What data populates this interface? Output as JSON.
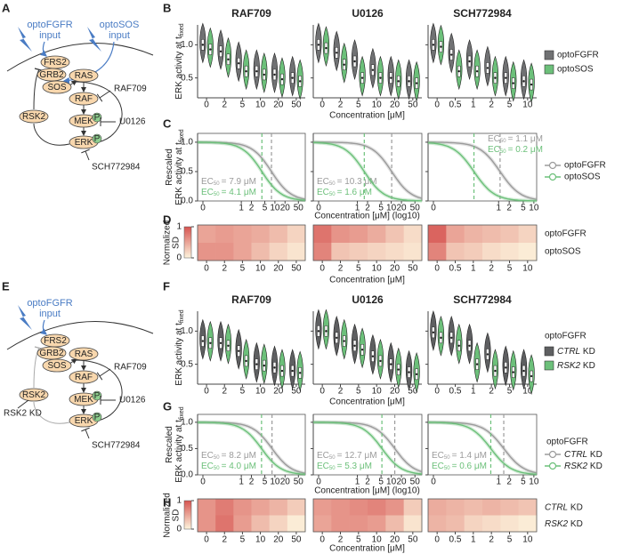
{
  "diagrams": [
    {
      "label": "A",
      "inputs": [
        [
          "optoFGFR",
          "input"
        ],
        [
          "optoSOS",
          "input"
        ]
      ],
      "nodes": [
        "FRS2",
        "GRB2",
        "SOS",
        "RAS",
        "RAF",
        "MEK",
        "ERK",
        "RSK2"
      ],
      "phospho": "P",
      "inhibitors": [
        "RAF709",
        "U0126",
        "SCH772984"
      ]
    },
    {
      "label": "E",
      "inputs": [
        [
          "optoFGFR",
          "input"
        ]
      ],
      "nodes": [
        "FRS2",
        "GRB2",
        "SOS",
        "RAS",
        "RAF",
        "MEK",
        "ERK",
        "RSK2"
      ],
      "phospho": "P",
      "inhibitors": [
        "RAF709",
        "U0126",
        "SCH772984"
      ],
      "knockdown": "RSK2 KD"
    }
  ],
  "chart_data": [
    {
      "label": "B",
      "type": "violin",
      "ylabel": "ERK activity at t",
      "ylabel_sub": "fixed",
      "xlabel": "Concentration [μM]",
      "ylim": [
        0.2,
        1.3
      ],
      "yticks": [
        {
          "value": 0.5,
          "label": "0.5"
        },
        {
          "value": 1,
          "label": "1.0"
        }
      ],
      "series": [
        {
          "name": "optoFGFR",
          "color": "#707173"
        },
        {
          "name": "optoSOS",
          "color": "#6cc07a"
        }
      ],
      "subplots": [
        {
          "title": "RAF709",
          "categories": [
            "0",
            "2",
            "5",
            "10",
            "20",
            "50"
          ],
          "values": [
            [
              1.0,
              0.9,
              0.72,
              0.6,
              0.55,
              0.5
            ],
            [
              0.93,
              0.78,
              0.6,
              0.55,
              0.48,
              0.45
            ]
          ]
        },
        {
          "title": "U0126",
          "categories": [
            "0",
            "2",
            "5",
            "10",
            "20",
            "50"
          ],
          "values": [
            [
              1.0,
              0.88,
              0.75,
              0.62,
              0.5,
              0.45
            ],
            [
              0.95,
              0.7,
              0.5,
              0.5,
              0.45,
              0.42
            ]
          ]
        },
        {
          "title": "SCH772984",
          "categories": [
            "0",
            "0.5",
            "1",
            "2",
            "5",
            "10"
          ],
          "values": [
            [
              1.0,
              0.85,
              0.75,
              0.65,
              0.5,
              0.45
            ],
            [
              0.97,
              0.6,
              0.6,
              0.5,
              0.42,
              0.4
            ]
          ]
        }
      ]
    },
    {
      "label": "C",
      "type": "dose_response",
      "ylabel": [
        "Rescaled",
        "ERK activity at t"
      ],
      "ylabel_sub": "fixed",
      "xlabel": "Concentration [μM] (log10)",
      "ylim": [
        0,
        1.15
      ],
      "yticks": [
        {
          "value": 0,
          "label": "0.0"
        },
        {
          "value": 0.5,
          "label": "0.5"
        },
        {
          "value": 1,
          "label": "1.0"
        }
      ],
      "ec50_prefix": "EC",
      "ec50_sub": "50",
      "series": [
        {
          "name": "optoFGFR",
          "color": "#9b9b9b"
        },
        {
          "name": "optoSOS",
          "color": "#6cc07a"
        }
      ],
      "subplots": [
        {
          "xlim": [
            0.05,
            80
          ],
          "xticks": [
            0,
            1,
            2,
            5,
            10,
            20,
            50
          ],
          "ec50": [
            {
              "value": 7.9,
              "label": "= 7.9 μM"
            },
            {
              "value": 4.1,
              "label": "= 4.1 μM"
            }
          ]
        },
        {
          "xlim": [
            0.05,
            80
          ],
          "xticks": [
            0,
            1,
            2,
            5,
            10,
            20,
            50
          ],
          "ec50": [
            {
              "value": 10.3,
              "label": "= 10.3 μM"
            },
            {
              "value": 1.6,
              "label": "= 1.6 μM"
            }
          ]
        },
        {
          "xlim": [
            0.01,
            12
          ],
          "xticks": [
            0,
            1,
            2,
            5,
            10
          ],
          "ec50": [
            {
              "value": 1.1,
              "label": "= 1.1 μM"
            },
            {
              "value": 0.2,
              "label": "= 0.2 μM"
            }
          ]
        }
      ]
    },
    {
      "label": "D",
      "type": "heatmap",
      "colorbar_label": [
        "Normalized",
        "SD"
      ],
      "colorbar_ticks": [
        0,
        1
      ],
      "colors": [
        "#fdf4dd",
        "#d65451"
      ],
      "rows": [
        "optoFGFR",
        "optoSOS"
      ],
      "xlabel": "Concentration [μM]",
      "subplots": [
        {
          "categories": [
            "0",
            "2",
            "5",
            "10",
            "20",
            "50"
          ],
          "values": [
            [
              0.5,
              0.55,
              0.5,
              0.45,
              0.35,
              0.2
            ],
            [
              0.6,
              0.6,
              0.5,
              0.35,
              0.2,
              0.1
            ]
          ]
        },
        {
          "categories": [
            "0",
            "2",
            "5",
            "10",
            "20",
            "50"
          ],
          "values": [
            [
              0.8,
              0.6,
              0.55,
              0.45,
              0.3,
              0.15
            ],
            [
              0.7,
              0.3,
              0.25,
              0.2,
              0.15,
              0.1
            ]
          ]
        },
        {
          "categories": [
            "0",
            "0.5",
            "1",
            "2",
            "5",
            "10"
          ],
          "values": [
            [
              0.9,
              0.5,
              0.4,
              0.35,
              0.3,
              0.2
            ],
            [
              0.7,
              0.3,
              0.25,
              0.15,
              0.1,
              0.05
            ]
          ]
        }
      ]
    },
    {
      "label": "F",
      "type": "violin",
      "ylabel": "ERK activity at t",
      "ylabel_sub": "fixed",
      "xlabel": "Concentration [μM]",
      "ylim": [
        0.2,
        1.3
      ],
      "yticks": [
        {
          "value": 0.5,
          "label": "0.5"
        },
        {
          "value": 1,
          "label": "1.0"
        }
      ],
      "legend_title": "optoFGFR",
      "series": [
        {
          "name": "CTRL KD",
          "color": "#5e5f61"
        },
        {
          "name": "RSK2 KD",
          "color": "#6cc07a"
        }
      ],
      "subplots": [
        {
          "title": "RAF709",
          "categories": [
            "0",
            "2",
            "5",
            "10",
            "20",
            "50"
          ],
          "values": [
            [
              0.85,
              0.82,
              0.7,
              0.5,
              0.45,
              0.4
            ],
            [
              0.82,
              0.78,
              0.55,
              0.48,
              0.4,
              0.37
            ]
          ]
        },
        {
          "title": "U0126",
          "categories": [
            "0",
            "2",
            "5",
            "10",
            "20",
            "50"
          ],
          "values": [
            [
              1.0,
              0.9,
              0.78,
              0.62,
              0.5,
              0.38
            ],
            [
              1.0,
              0.85,
              0.72,
              0.55,
              0.42,
              0.35
            ]
          ]
        },
        {
          "title": "SCH772984",
          "categories": [
            "0",
            "0.5",
            "1",
            "2",
            "5",
            "10"
          ],
          "values": [
            [
              0.98,
              0.9,
              0.78,
              0.65,
              0.45,
              0.4
            ],
            [
              0.9,
              0.78,
              0.5,
              0.4,
              0.38,
              0.32
            ]
          ]
        }
      ]
    },
    {
      "label": "G",
      "type": "dose_response",
      "ylabel": [
        "Rescaled",
        "ERK activity at t"
      ],
      "ylabel_sub": "fixed",
      "xlabel": "Concentration [μM] (log10)",
      "ylim": [
        0,
        1.15
      ],
      "yticks": [
        {
          "value": 0,
          "label": "0.0"
        },
        {
          "value": 0.5,
          "label": "0.5"
        },
        {
          "value": 1,
          "label": "1.0"
        }
      ],
      "ec50_prefix": "EC",
      "ec50_sub": "50",
      "legend_title": "optoFGFR",
      "series": [
        {
          "name": "CTRL KD",
          "color": "#9b9b9b"
        },
        {
          "name": "RSK2 KD",
          "color": "#6cc07a"
        }
      ],
      "subplots": [
        {
          "xlim": [
            0.05,
            80
          ],
          "xticks": [
            0,
            1,
            2,
            5,
            10,
            20,
            50
          ],
          "ec50": [
            {
              "value": 8.2,
              "label": "= 8.2 μM"
            },
            {
              "value": 4.0,
              "label": "= 4.0 μM"
            }
          ]
        },
        {
          "xlim": [
            0.05,
            80
          ],
          "xticks": [
            0,
            1,
            2,
            5,
            10,
            20,
            50
          ],
          "ec50": [
            {
              "value": 12.7,
              "label": "= 12.7 μM"
            },
            {
              "value": 5.3,
              "label": "= 5.3 μM"
            }
          ]
        },
        {
          "xlim": [
            0.01,
            12
          ],
          "xticks": [
            0,
            1,
            2,
            5,
            10
          ],
          "ec50": [
            {
              "value": 1.4,
              "label": "= 1.4 μM"
            },
            {
              "value": 0.6,
              "label": "= 0.6 μM"
            }
          ]
        }
      ]
    },
    {
      "label": "H",
      "type": "heatmap",
      "colorbar_label": [
        "Normalized",
        "SD"
      ],
      "colorbar_ticks": [
        0,
        1
      ],
      "colors": [
        "#fdf4dd",
        "#d65451"
      ],
      "rows": [
        "CTRL KD",
        "RSK2 KD"
      ],
      "xlabel": "Concentration [μM]",
      "subplots": [
        {
          "categories": [
            "0",
            "2",
            "5",
            "10",
            "20",
            "50"
          ],
          "values": [
            [
              0.6,
              0.75,
              0.6,
              0.5,
              0.4,
              0.25
            ],
            [
              0.6,
              0.8,
              0.55,
              0.35,
              0.2,
              0.05
            ]
          ]
        },
        {
          "categories": [
            "0",
            "2",
            "5",
            "10",
            "20",
            "50"
          ],
          "values": [
            [
              0.55,
              0.6,
              0.65,
              0.7,
              0.6,
              0.25
            ],
            [
              0.5,
              0.6,
              0.6,
              0.55,
              0.35,
              0.1
            ]
          ]
        },
        {
          "categories": [
            "0",
            "0.5",
            "1",
            "2",
            "5",
            "10"
          ],
          "values": [
            [
              0.45,
              0.4,
              0.35,
              0.4,
              0.35,
              0.3
            ],
            [
              0.4,
              0.35,
              0.2,
              0.15,
              0.1,
              0.05
            ]
          ]
        }
      ]
    }
  ]
}
